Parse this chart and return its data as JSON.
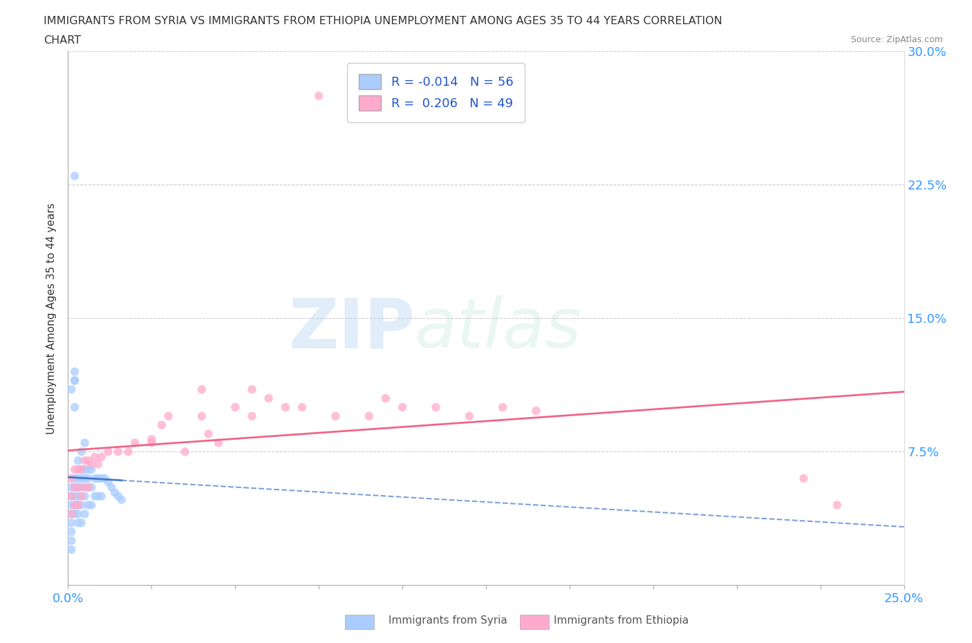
{
  "title_line1": "IMMIGRANTS FROM SYRIA VS IMMIGRANTS FROM ETHIOPIA UNEMPLOYMENT AMONG AGES 35 TO 44 YEARS CORRELATION",
  "title_line2": "CHART",
  "source": "Source: ZipAtlas.com",
  "ylabel": "Unemployment Among Ages 35 to 44 years",
  "xlim": [
    0.0,
    0.25
  ],
  "ylim": [
    0.0,
    0.3
  ],
  "ytick_vals": [
    0.0,
    0.075,
    0.15,
    0.225,
    0.3
  ],
  "ytick_labels": [
    "",
    "7.5%",
    "15.0%",
    "22.5%",
    "30.0%"
  ],
  "xtick_vals": [
    0.0,
    0.025,
    0.05,
    0.075,
    0.1,
    0.125,
    0.15,
    0.175,
    0.2,
    0.225,
    0.25
  ],
  "syria_color": "#aaccff",
  "ethiopia_color": "#ffaacc",
  "syria_line_color": "#4477cc",
  "ethiopia_line_color": "#ee6688",
  "syria_R": -0.014,
  "syria_N": 56,
  "ethiopia_R": 0.206,
  "ethiopia_N": 49,
  "legend_label_syria": "Immigrants from Syria",
  "legend_label_ethiopia": "Immigrants from Ethiopia",
  "watermark_zip": "ZIP",
  "watermark_atlas": "atlas",
  "bg_color": "#ffffff",
  "grid_color": "#cccccc",
  "text_color": "#333333",
  "label_color": "#3399ff",
  "syria_x": [
    0.001,
    0.001,
    0.001,
    0.001,
    0.001,
    0.001,
    0.001,
    0.001,
    0.002,
    0.002,
    0.002,
    0.002,
    0.002,
    0.002,
    0.002,
    0.003,
    0.003,
    0.003,
    0.003,
    0.003,
    0.003,
    0.004,
    0.004,
    0.004,
    0.004,
    0.004,
    0.005,
    0.005,
    0.005,
    0.005,
    0.006,
    0.006,
    0.006,
    0.006,
    0.007,
    0.007,
    0.007,
    0.008,
    0.008,
    0.009,
    0.009,
    0.01,
    0.01,
    0.011,
    0.012,
    0.013,
    0.014,
    0.015,
    0.016,
    0.002,
    0.002,
    0.001,
    0.003,
    0.004,
    0.005,
    0.002
  ],
  "syria_y": [
    0.055,
    0.05,
    0.045,
    0.04,
    0.035,
    0.03,
    0.025,
    0.02,
    0.06,
    0.055,
    0.05,
    0.045,
    0.04,
    0.23,
    0.115,
    0.06,
    0.055,
    0.05,
    0.045,
    0.04,
    0.035,
    0.065,
    0.06,
    0.055,
    0.045,
    0.035,
    0.065,
    0.06,
    0.05,
    0.04,
    0.065,
    0.06,
    0.055,
    0.045,
    0.065,
    0.055,
    0.045,
    0.06,
    0.05,
    0.06,
    0.05,
    0.06,
    0.05,
    0.06,
    0.058,
    0.055,
    0.052,
    0.05,
    0.048,
    0.115,
    0.12,
    0.11,
    0.07,
    0.075,
    0.08,
    0.1
  ],
  "ethiopia_x": [
    0.001,
    0.001,
    0.001,
    0.002,
    0.002,
    0.002,
    0.003,
    0.003,
    0.003,
    0.004,
    0.004,
    0.005,
    0.005,
    0.006,
    0.006,
    0.007,
    0.008,
    0.009,
    0.01,
    0.012,
    0.015,
    0.018,
    0.02,
    0.025,
    0.028,
    0.03,
    0.035,
    0.04,
    0.042,
    0.045,
    0.05,
    0.055,
    0.06,
    0.065,
    0.07,
    0.075,
    0.08,
    0.09,
    0.095,
    0.1,
    0.11,
    0.12,
    0.13,
    0.14,
    0.055,
    0.04,
    0.025,
    0.22,
    0.23
  ],
  "ethiopia_y": [
    0.06,
    0.05,
    0.04,
    0.065,
    0.055,
    0.045,
    0.065,
    0.055,
    0.045,
    0.065,
    0.05,
    0.07,
    0.055,
    0.07,
    0.055,
    0.068,
    0.072,
    0.068,
    0.072,
    0.075,
    0.075,
    0.075,
    0.08,
    0.082,
    0.09,
    0.095,
    0.075,
    0.095,
    0.085,
    0.08,
    0.1,
    0.095,
    0.105,
    0.1,
    0.1,
    0.275,
    0.095,
    0.095,
    0.105,
    0.1,
    0.1,
    0.095,
    0.1,
    0.098,
    0.11,
    0.11,
    0.08,
    0.06,
    0.045
  ]
}
